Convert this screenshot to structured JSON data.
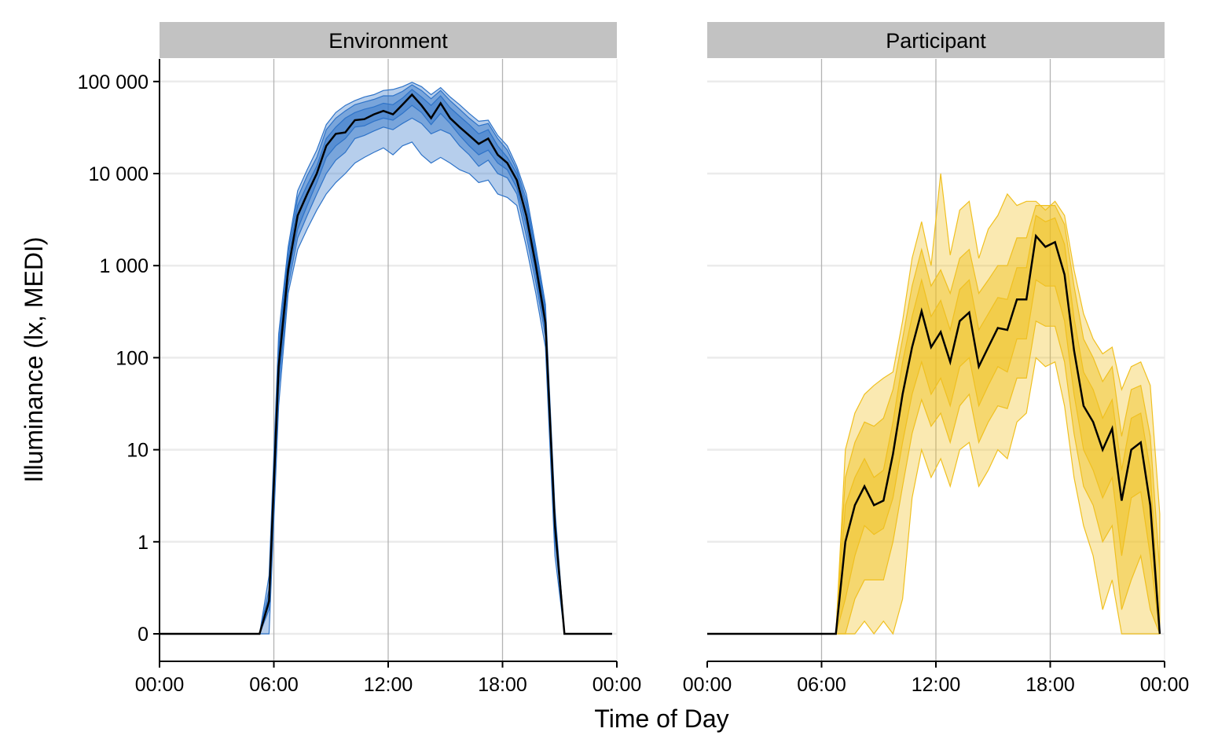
{
  "chart_data": {
    "type": "area",
    "xlabel": "Time of Day",
    "ylabel": "Illuminance (lx, MEDI)",
    "x_ticks": [
      "00:00",
      "06:00",
      "12:00",
      "18:00",
      "00:00"
    ],
    "x_tick_hours": [
      0,
      6,
      12,
      18,
      24
    ],
    "y_scale": "symlog",
    "y_ticks": [
      "0",
      "1",
      "10",
      "100",
      "1 000",
      "10 000",
      "100 000"
    ],
    "y_tick_values": [
      0,
      1,
      10,
      100,
      1000,
      10000,
      100000
    ],
    "grid": true,
    "band_colors": {
      "Environment": "#2E73C8",
      "Participant": "#F0C020"
    },
    "median_color": "#000000",
    "hours": [
      0.25,
      0.75,
      1.25,
      1.75,
      2.25,
      2.75,
      3.25,
      3.75,
      4.25,
      4.75,
      5.25,
      5.75,
      6.25,
      6.75,
      7.25,
      7.75,
      8.25,
      8.75,
      9.25,
      9.75,
      10.25,
      10.75,
      11.25,
      11.75,
      12.25,
      12.75,
      13.25,
      13.75,
      14.25,
      14.75,
      15.25,
      15.75,
      16.25,
      16.75,
      17.25,
      17.75,
      18.25,
      18.75,
      19.25,
      19.75,
      20.25,
      20.75,
      21.25,
      21.75,
      22.25,
      22.75,
      23.25,
      23.75
    ],
    "facets": [
      {
        "name": "Environment",
        "median": [
          0,
          0,
          0,
          0,
          0,
          0,
          0,
          0,
          0,
          0,
          0,
          0.28,
          80,
          900,
          3500,
          6000,
          10000,
          20000,
          27000,
          28000,
          38000,
          39000,
          44000,
          48000,
          44000,
          56000,
          72000,
          55000,
          40000,
          58000,
          40000,
          32000,
          26000,
          21000,
          24000,
          16000,
          13000,
          8500,
          3500,
          1000,
          240,
          1.5,
          0,
          0,
          0,
          0,
          0,
          0
        ],
        "bands": [
          {
            "lower": [
              0,
              0,
              0,
              0,
              0,
              0,
              0,
              0,
              0,
              0,
              0,
              0.25,
              60,
              750,
              2500,
              4500,
              8000,
              15000,
              20000,
              24000,
              32000,
              33000,
              37000,
              40000,
              38000,
              45000,
              55000,
              46000,
              34000,
              45000,
              35000,
              26000,
              20000,
              16000,
              18000,
              13000,
              11000,
              7000,
              2700,
              800,
              200,
              1.3,
              0,
              0,
              0,
              0,
              0,
              0
            ],
            "upper": [
              0,
              0,
              0,
              0,
              0,
              0,
              0,
              0,
              0,
              0,
              0,
              0.32,
              110,
              1150,
              4500,
              7500,
              12000,
              24000,
              32000,
              40000,
              46000,
              50000,
              53000,
              58000,
              56000,
              66000,
              82000,
              68000,
              55000,
              70000,
              52000,
              42000,
              34000,
              27000,
              30000,
              20000,
              15000,
              10000,
              4500,
              1200,
              290,
              1.7,
              0,
              0,
              0,
              0,
              0,
              0
            ]
          },
          {
            "lower": [
              0,
              0,
              0,
              0,
              0,
              0,
              0,
              0,
              0,
              0,
              0,
              0.2,
              45,
              600,
              2000,
              3500,
              6000,
              10000,
              14000,
              17000,
              24000,
              26000,
              29000,
              32000,
              30000,
              35000,
              40000,
              35000,
              27000,
              30000,
              27000,
              20000,
              16000,
              12000,
              14000,
              10000,
              9000,
              6000,
              2100,
              650,
              170,
              1.1,
              0,
              0,
              0,
              0,
              0,
              0
            ],
            "upper": [
              0,
              0,
              0,
              0,
              0,
              0,
              0,
              0,
              0,
              0,
              0,
              0.4,
              140,
              1400,
              5500,
              9500,
              15000,
              30000,
              40000,
              48000,
              56000,
              60000,
              64000,
              70000,
              70000,
              78000,
              92000,
              80000,
              65000,
              80000,
              62000,
              50000,
              40000,
              33000,
              35000,
              24000,
              18000,
              11000,
              5200,
              1400,
              330,
              2,
              0,
              0,
              0,
              0,
              0,
              0
            ]
          },
          {
            "lower": [
              0,
              0,
              0,
              0,
              0,
              0,
              0,
              0,
              0,
              0,
              0,
              0,
              30,
              500,
              1500,
              2500,
              4000,
              6000,
              8000,
              10000,
              13000,
              15000,
              17000,
              19000,
              16000,
              20000,
              22000,
              16000,
              13000,
              15000,
              13000,
              11000,
              10000,
              8000,
              8500,
              6000,
              5500,
              4500,
              1600,
              500,
              130,
              0.8,
              0,
              0,
              0,
              0,
              0,
              0
            ],
            "upper": [
              0,
              0,
              0,
              0,
              0,
              0,
              0,
              0,
              0,
              0,
              0,
              0.55,
              180,
              1600,
              6500,
              11000,
              18000,
              34000,
              46000,
              55000,
              62000,
              68000,
              72000,
              80000,
              82000,
              88000,
              98000,
              88000,
              72000,
              86000,
              68000,
              56000,
              45000,
              37000,
              38000,
              26000,
              20000,
              12000,
              6000,
              1600,
              380,
              2.3,
              0,
              0,
              0,
              0,
              0,
              0
            ]
          }
        ]
      },
      {
        "name": "Participant",
        "median": [
          0,
          0,
          0,
          0,
          0,
          0,
          0,
          0,
          0,
          0,
          0,
          0,
          0,
          0,
          1,
          2.5,
          4,
          2.5,
          2.8,
          9,
          40,
          130,
          320,
          130,
          190,
          90,
          250,
          310,
          80,
          130,
          210,
          200,
          430,
          430,
          2100,
          1600,
          1800,
          800,
          120,
          30,
          20,
          10,
          17,
          2.8,
          10,
          12,
          2.5,
          0
        ],
        "bands": [
          {
            "lower": [
              0,
              0,
              0,
              0,
              0,
              0,
              0,
              0,
              0,
              0,
              0,
              0,
              0,
              0,
              0.3,
              0.8,
              1.5,
              1.2,
              1.4,
              3,
              12,
              40,
              90,
              40,
              60,
              30,
              80,
              100,
              30,
              50,
              80,
              70,
              160,
              160,
              700,
              600,
              600,
              250,
              40,
              10,
              6,
              3,
              5,
              0.8,
              3,
              3.5,
              0.8,
              0
            ],
            "upper": [
              0,
              0,
              0,
              0,
              0,
              0,
              0,
              0,
              0,
              0,
              0,
              0,
              0,
              0,
              2.5,
              5,
              8,
              5,
              6,
              20,
              90,
              280,
              700,
              280,
              420,
              200,
              550,
              700,
              200,
              300,
              450,
              430,
              950,
              950,
              3500,
              3000,
              3300,
              1700,
              270,
              70,
              45,
              22,
              35,
              6,
              22,
              25,
              6,
              0
            ]
          },
          {
            "lower": [
              0,
              0,
              0,
              0,
              0,
              0,
              0,
              0,
              0,
              0,
              0,
              0,
              0,
              0,
              0,
              0.3,
              0.5,
              0.5,
              0.5,
              1,
              4,
              15,
              35,
              18,
              25,
              12,
              30,
              40,
              12,
              20,
              30,
              28,
              60,
              60,
              250,
              220,
              220,
              90,
              15,
              4,
              2.5,
              1,
              1.5,
              0.2,
              0.5,
              0.8,
              0.2,
              0
            ],
            "upper": [
              0,
              0,
              0,
              0,
              0,
              0,
              0,
              0,
              0,
              0,
              0,
              0,
              0,
              0,
              5,
              12,
              20,
              18,
              22,
              45,
              160,
              600,
              1500,
              600,
              900,
              500,
              1200,
              1500,
              500,
              700,
              1000,
              1000,
              2000,
              2000,
              4500,
              4500,
              4500,
              2800,
              600,
              160,
              100,
              55,
              80,
              14,
              45,
              50,
              14,
              0.6
            ]
          },
          {
            "lower": [
              0,
              0,
              0,
              0,
              0,
              0,
              0,
              0,
              0,
              0,
              0,
              0,
              0,
              0,
              0,
              0,
              0.1,
              0,
              0.1,
              0,
              0.3,
              3,
              10,
              5,
              8,
              4,
              10,
              12,
              4,
              6,
              10,
              8,
              20,
              25,
              100,
              80,
              90,
              30,
              5,
              1.5,
              0.8,
              0.2,
              0.5,
              0,
              0,
              0,
              0,
              0
            ],
            "upper": [
              0,
              0,
              0,
              0,
              0,
              0,
              0,
              0,
              0,
              0,
              0,
              0,
              0,
              0,
              10,
              25,
              40,
              50,
              60,
              70,
              250,
              1200,
              3000,
              1000,
              10000,
              1300,
              4000,
              5000,
              1200,
              2500,
              3500,
              6000,
              4500,
              5000,
              5000,
              4000,
              5000,
              3500,
              900,
              300,
              160,
              110,
              130,
              45,
              80,
              90,
              50,
              2
            ]
          }
        ]
      }
    ]
  }
}
